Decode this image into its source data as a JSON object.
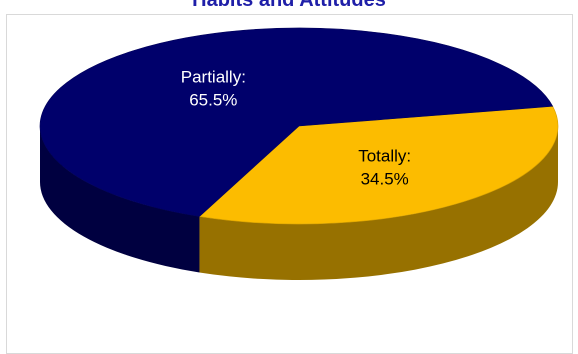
{
  "chart_data": {
    "type": "pie",
    "title": "Habits and Attitudes",
    "categories": [
      "Partially",
      "Totally"
    ],
    "values": [
      65.5,
      34.5
    ],
    "labels": [
      {
        "name": "Partially:",
        "value": "65.5%"
      },
      {
        "name": "Totally:",
        "value": "34.5%"
      }
    ],
    "colors": [
      "#00006b",
      "#fcbc00"
    ],
    "label_colors": [
      "#ffffff",
      "#000000"
    ],
    "style": "3d",
    "legend": "none"
  }
}
